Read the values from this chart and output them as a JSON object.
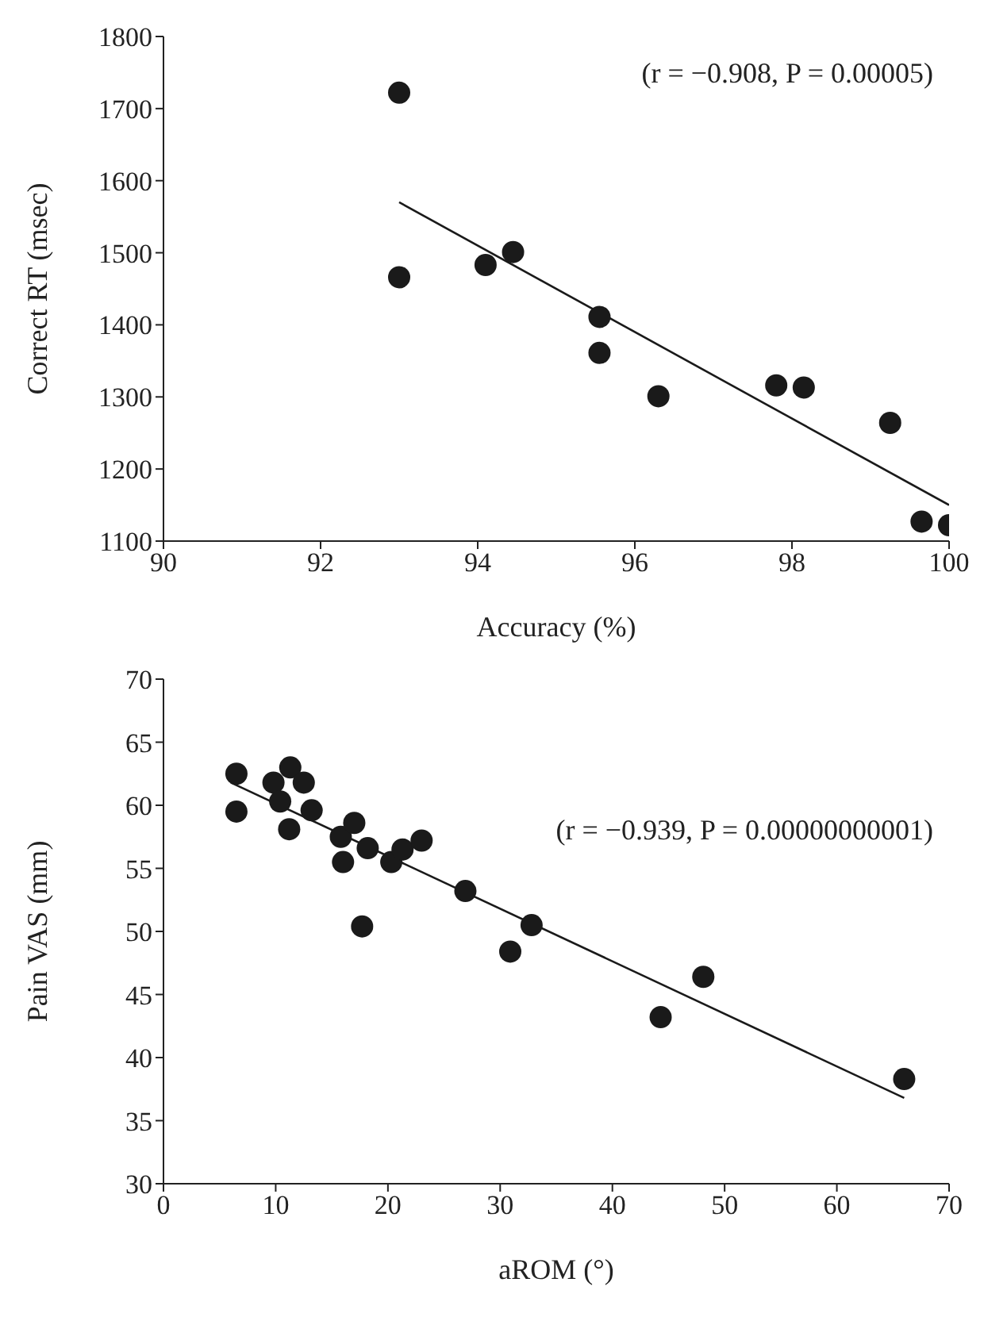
{
  "chart_data": [
    {
      "type": "scatter",
      "xlabel": "Accuracy (%)",
      "ylabel": "Correct RT (msec)",
      "annotations": [
        "(r = −0.908, P = 0.00005)"
      ],
      "xlim": [
        90,
        100
      ],
      "xticks": [
        90,
        92,
        94,
        96,
        98,
        100
      ],
      "ylim": [
        1100,
        1800
      ],
      "yticks": [
        1100,
        1200,
        1300,
        1400,
        1500,
        1600,
        1700,
        1800
      ],
      "grid": false,
      "legend": false,
      "series": [
        {
          "marker": "circle",
          "color": "#1a1a1a",
          "x": [
            93,
            93,
            94.1,
            94.45,
            95.55,
            95.55,
            96.3,
            97.8,
            98.15,
            99.25,
            99.65,
            100
          ],
          "values": [
            1722,
            1466,
            1483,
            1501,
            1411,
            1361,
            1301,
            1316,
            1313,
            1264,
            1127,
            1122
          ]
        },
        {
          "type": "line",
          "marker": "none",
          "color": "#1a1a1a",
          "x": [
            93,
            100
          ],
          "values": [
            1570,
            1150
          ]
        }
      ]
    },
    {
      "type": "scatter",
      "xlabel": "aROM (°)",
      "ylabel": "Pain VAS (mm)",
      "annotations": [
        "(r = −0.939, P = 0.00000000001)"
      ],
      "xlim": [
        0,
        70
      ],
      "xticks": [
        0,
        10,
        20,
        30,
        40,
        50,
        60,
        70
      ],
      "ylim": [
        30,
        70
      ],
      "yticks": [
        30,
        35,
        40,
        45,
        50,
        55,
        60,
        65,
        70
      ],
      "grid": false,
      "legend": false,
      "series": [
        {
          "marker": "circle",
          "color": "#1a1a1a",
          "x": [
            6.5,
            6.5,
            9.8,
            10.4,
            11.2,
            11.3,
            12.5,
            13.2,
            15.8,
            16,
            17,
            17.7,
            18.2,
            20.3,
            21.3,
            23,
            26.9,
            30.9,
            32.8,
            44.3,
            48.1,
            66
          ],
          "values": [
            62.5,
            59.5,
            61.8,
            60.3,
            58.1,
            63,
            61.8,
            59.6,
            57.5,
            55.5,
            58.6,
            50.4,
            56.6,
            55.5,
            56.5,
            57.2,
            53.2,
            48.4,
            50.5,
            43.2,
            46.4,
            38.3
          ]
        },
        {
          "type": "line",
          "marker": "none",
          "color": "#1a1a1a",
          "x": [
            6,
            66
          ],
          "values": [
            61.8,
            36.8
          ]
        }
      ]
    }
  ]
}
